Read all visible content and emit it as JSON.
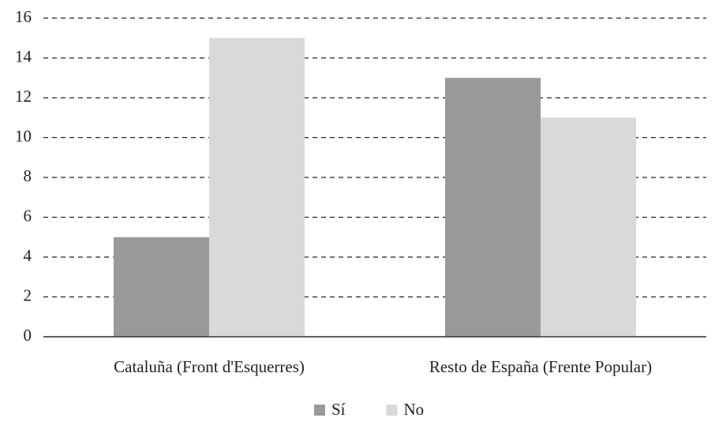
{
  "chart_data": {
    "type": "bar",
    "categories": [
      "Cataluña (Front d'Esquerres)",
      "Resto de España (Frente Popular)"
    ],
    "series": [
      {
        "name": "Sí",
        "color": "#999999",
        "values": [
          5,
          13
        ]
      },
      {
        "name": "No",
        "color": "#d9d9d9",
        "values": [
          15,
          11
        ]
      }
    ],
    "ylim": [
      0,
      16
    ],
    "yticks": [
      0,
      2,
      4,
      6,
      8,
      10,
      12,
      14,
      16
    ],
    "grid": true,
    "legend": "bottom"
  }
}
